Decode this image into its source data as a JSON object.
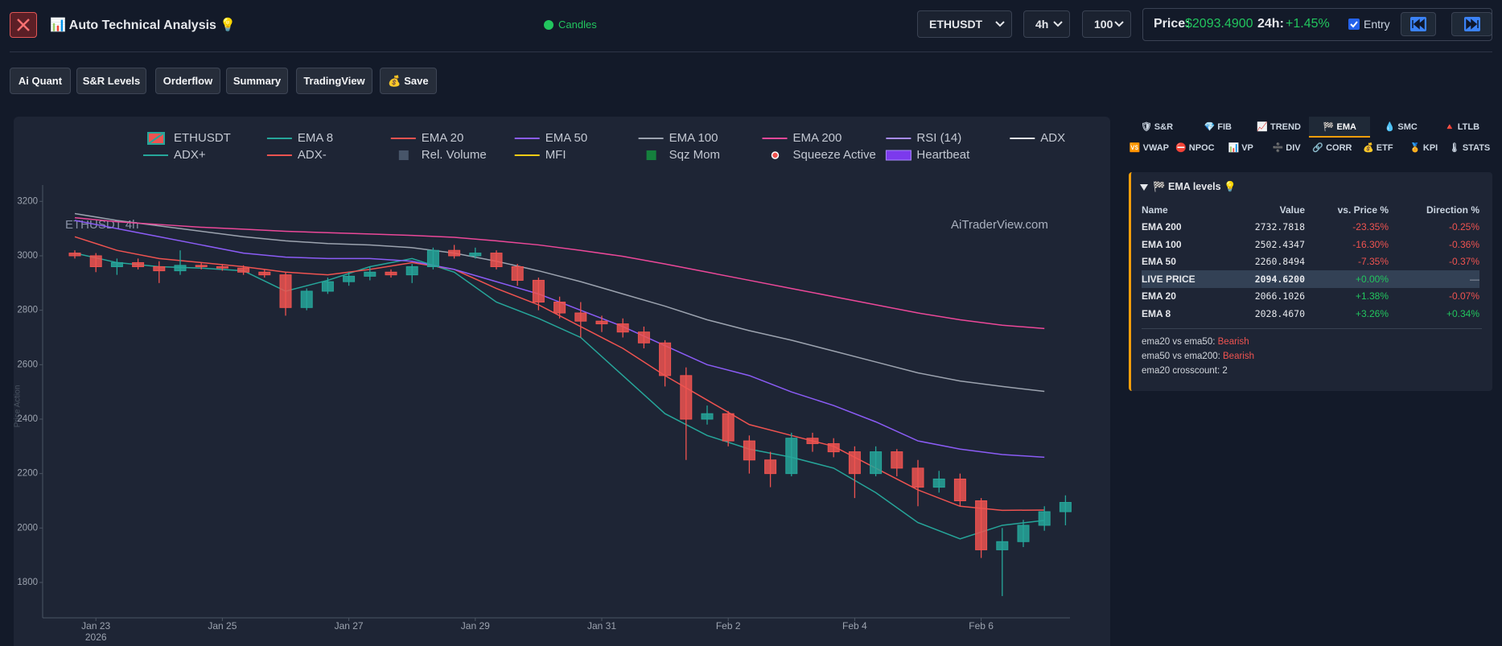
{
  "header": {
    "title": "📊 Auto Technical Analysis 💡",
    "mode": "Candles",
    "symbol": "ETHUSDT",
    "timeframe": "4h",
    "limit": "100",
    "price_label": "Price:",
    "price": "$2093.4900",
    "change_label": "24h:",
    "change": "+1.45%",
    "entry_label": "Entry"
  },
  "toolbar": {
    "buttons": [
      "Ai Quant",
      "S&R Levels",
      "Orderflow",
      "Summary",
      "TradingView",
      "💰 Save"
    ]
  },
  "chart_data": {
    "type": "candlestick",
    "title": "ETHUSDT 4h",
    "watermark": "AiTraderView.com",
    "y_label": "Price Action",
    "name": "ETHUSDT",
    "up_color": "#26a69a",
    "down_color": "#ef5350",
    "categories": [
      null,
      "Jan 23",
      null,
      null,
      null,
      null,
      null,
      "Jan 25",
      null,
      null,
      null,
      null,
      null,
      "Jan 27",
      null,
      null,
      null,
      null,
      null,
      "Jan 29",
      null,
      null,
      null,
      null,
      null,
      "Jan 31",
      null,
      null,
      null,
      null,
      null,
      "Feb 2",
      null,
      null,
      null,
      null,
      null,
      "Feb 4",
      null,
      null,
      null,
      null,
      null,
      "Feb 6",
      null,
      null,
      null,
      null
    ],
    "year_label": "2026",
    "open": [
      3010,
      3000,
      2960,
      2975,
      2960,
      2945,
      2965,
      2960,
      2955,
      2940,
      2930,
      2810,
      2870,
      2905,
      2925,
      2940,
      2930,
      2960,
      3020,
      3000,
      3010,
      2960,
      2910,
      2830,
      2790,
      2760,
      2750,
      2720,
      2680,
      2560,
      2400,
      2420,
      2320,
      2250,
      2200,
      2330,
      2310,
      2280,
      2200,
      2280,
      2220,
      2150,
      2180,
      2100,
      1920,
      1950,
      2010,
      2060
    ],
    "high": [
      3020,
      3010,
      2990,
      2990,
      2980,
      3020,
      2975,
      2970,
      2965,
      2950,
      2940,
      2880,
      2920,
      2940,
      2960,
      2950,
      2970,
      3030,
      3040,
      3030,
      3020,
      2970,
      2920,
      2850,
      2830,
      2780,
      2770,
      2740,
      2690,
      2590,
      2450,
      2430,
      2340,
      2280,
      2350,
      2350,
      2330,
      2300,
      2300,
      2290,
      2250,
      2210,
      2200,
      2110,
      2000,
      2030,
      2080,
      2120
    ],
    "low": [
      2990,
      2940,
      2930,
      2950,
      2900,
      2930,
      2950,
      2945,
      2930,
      2920,
      2780,
      2800,
      2860,
      2890,
      2910,
      2920,
      2900,
      2950,
      2990,
      2990,
      2950,
      2890,
      2800,
      2770,
      2700,
      2720,
      2700,
      2660,
      2520,
      2250,
      2380,
      2300,
      2200,
      2150,
      2190,
      2280,
      2260,
      2110,
      2190,
      2190,
      2080,
      2130,
      2080,
      1890,
      1750,
      1930,
      1990,
      2010
    ],
    "close": [
      3000,
      2960,
      2975,
      2960,
      2945,
      2965,
      2960,
      2955,
      2940,
      2930,
      2810,
      2870,
      2905,
      2925,
      2940,
      2930,
      2960,
      3020,
      3000,
      3010,
      2960,
      2910,
      2830,
      2790,
      2760,
      2750,
      2720,
      2680,
      2560,
      2400,
      2420,
      2320,
      2250,
      2200,
      2330,
      2310,
      2280,
      2200,
      2280,
      2220,
      2150,
      2180,
      2100,
      1920,
      1950,
      2010,
      2060,
      2094
    ],
    "x": [
      0,
      2,
      4,
      6,
      8,
      10,
      12,
      14,
      16,
      18,
      20,
      22,
      24,
      26,
      28,
      30,
      32,
      34,
      36,
      38,
      40,
      42,
      44,
      46
    ],
    "series": [
      {
        "name": "EMA 8",
        "color": "#26a69a",
        "values": [
          3010,
          2975,
          2960,
          2955,
          2945,
          2870,
          2910,
          2960,
          2990,
          2940,
          2830,
          2770,
          2700,
          2560,
          2420,
          2340,
          2290,
          2260,
          2220,
          2130,
          2020,
          1960,
          2010,
          2028
        ]
      },
      {
        "name": "EMA 20",
        "color": "#ef5350",
        "values": [
          3070,
          3020,
          2990,
          2975,
          2960,
          2940,
          2930,
          2950,
          2975,
          2950,
          2880,
          2820,
          2740,
          2660,
          2560,
          2470,
          2380,
          2340,
          2300,
          2220,
          2140,
          2080,
          2065,
          2066
        ]
      },
      {
        "name": "EMA 50",
        "color": "#8b5cf6",
        "values": [
          3130,
          3100,
          3070,
          3040,
          3010,
          2995,
          2990,
          2990,
          2980,
          2950,
          2905,
          2860,
          2800,
          2740,
          2670,
          2600,
          2560,
          2500,
          2450,
          2390,
          2320,
          2290,
          2270,
          2260
        ]
      },
      {
        "name": "EMA 100",
        "color": "#9ca3af",
        "values": [
          3155,
          3130,
          3110,
          3090,
          3070,
          3055,
          3045,
          3040,
          3030,
          3010,
          2980,
          2945,
          2905,
          2860,
          2815,
          2765,
          2725,
          2690,
          2650,
          2610,
          2570,
          2540,
          2520,
          2502
        ]
      },
      {
        "name": "EMA 200",
        "color": "#ec4899",
        "values": [
          3140,
          3125,
          3115,
          3105,
          3098,
          3090,
          3085,
          3080,
          3075,
          3068,
          3055,
          3040,
          3020,
          2998,
          2970,
          2940,
          2910,
          2880,
          2850,
          2820,
          2790,
          2765,
          2745,
          2733
        ]
      }
    ],
    "other_indicators": [
      {
        "name": "RSI (14)",
        "color": "#a78bfa",
        "symbol": "line"
      },
      {
        "name": "ADX",
        "color": "#e5e7eb",
        "symbol": "line"
      },
      {
        "name": "ADX+",
        "color": "#26a69a",
        "symbol": "line"
      },
      {
        "name": "ADX-",
        "color": "#ef5350",
        "symbol": "line"
      },
      {
        "name": "Rel. Volume",
        "color": "#475569",
        "symbol": "square"
      },
      {
        "name": "MFI",
        "color": "#facc15",
        "symbol": "line"
      },
      {
        "name": "Sqz Mom",
        "color": "#15803d",
        "symbol": "square"
      },
      {
        "name": "Squeeze Active",
        "color": "#ef5350",
        "symbol": "dot"
      },
      {
        "name": "Heartbeat",
        "color": "#7c3aed",
        "symbol": "box"
      }
    ],
    "ylim": [
      1670,
      3260
    ],
    "yticks": [
      1800,
      2000,
      2200,
      2400,
      2600,
      2800,
      3000,
      3200
    ],
    "grid": false
  },
  "side_panel": {
    "tabs": [
      "🛡 S&R",
      "💎 FIB",
      "📈 TREND",
      "🏁 EMA",
      "💧 SMC",
      "🔺 LTLB"
    ],
    "active_tab": 3,
    "tabs_row2": [
      "🆚 VWAP",
      "⛔ NPOC",
      "📊 VP",
      "➗ DIV",
      "🔗 CORR",
      "💰 ETF",
      "🏅 KPI",
      "🌡 STATS"
    ],
    "ema_box": {
      "title": "🏁 EMA levels 💡",
      "columns": [
        "Name",
        "Value",
        "vs. Price %",
        "Direction %"
      ],
      "rows": [
        {
          "name": "EMA 200",
          "value": "2732.7818",
          "vs_price": "-23.35%",
          "direction": "-0.25%",
          "vs_color": "#ef5350",
          "dir_color": "#ef5350"
        },
        {
          "name": "EMA 100",
          "value": "2502.4347",
          "vs_price": "-16.30%",
          "direction": "-0.36%",
          "vs_color": "#ef5350",
          "dir_color": "#ef5350"
        },
        {
          "name": "EMA 50",
          "value": "2260.8494",
          "vs_price": "-7.35%",
          "direction": "-0.37%",
          "vs_color": "#ef5350",
          "dir_color": "#ef5350"
        },
        {
          "name": "LIVE PRICE",
          "value": "2094.6200",
          "vs_price": "+0.00%",
          "direction": "—",
          "vs_color": "#22c55e",
          "dir_color": "#9ca3af",
          "highlight": true
        },
        {
          "name": "EMA 20",
          "value": "2066.1026",
          "vs_price": "+1.38%",
          "direction": "-0.07%",
          "vs_color": "#22c55e",
          "dir_color": "#ef5350"
        },
        {
          "name": "EMA 8",
          "value": "2028.4670",
          "vs_price": "+3.26%",
          "direction": "+0.34%",
          "vs_color": "#22c55e",
          "dir_color": "#22c55e"
        }
      ],
      "notes": [
        {
          "label": "ema20 vs ema50:",
          "value": "Bearish",
          "color": "#ef5350"
        },
        {
          "label": "ema50 vs ema200:",
          "value": "Bearish",
          "color": "#ef5350"
        },
        {
          "label": "ema20 crosscount:",
          "value": "2",
          "color": "#d1d5db"
        }
      ]
    }
  }
}
